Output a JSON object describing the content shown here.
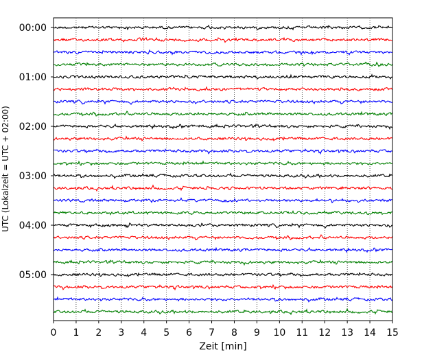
{
  "chart_data": {
    "type": "line",
    "title": "",
    "xlabel": "Zeit  [min]",
    "ylabel": "UTC (Lokalzeit = UTC + 02:00)",
    "xlim": [
      0,
      15
    ],
    "x_ticks": [
      "0",
      "1",
      "2",
      "3",
      "4",
      "5",
      "6",
      "7",
      "8",
      "9",
      "10",
      "11",
      "12",
      "13",
      "14",
      "15"
    ],
    "y_ticks": [
      "00:00",
      "01:00",
      "02:00",
      "03:00",
      "04:00",
      "05:00"
    ],
    "x_grid": "dotted vertical lines at each minute",
    "trace_interval_minutes": 15,
    "trace_count": 24,
    "trace_colors": [
      "#000000",
      "#ff0000",
      "#0000ff",
      "#007f00"
    ],
    "traces_start": [
      "00:00",
      "00:15",
      "00:30",
      "00:45",
      "01:00",
      "01:15",
      "01:30",
      "01:45",
      "02:00",
      "02:15",
      "02:30",
      "02:45",
      "03:00",
      "03:15",
      "03:30",
      "03:45",
      "04:00",
      "04:15",
      "04:30",
      "04:45",
      "05:00",
      "05:15",
      "05:30",
      "05:45"
    ]
  }
}
